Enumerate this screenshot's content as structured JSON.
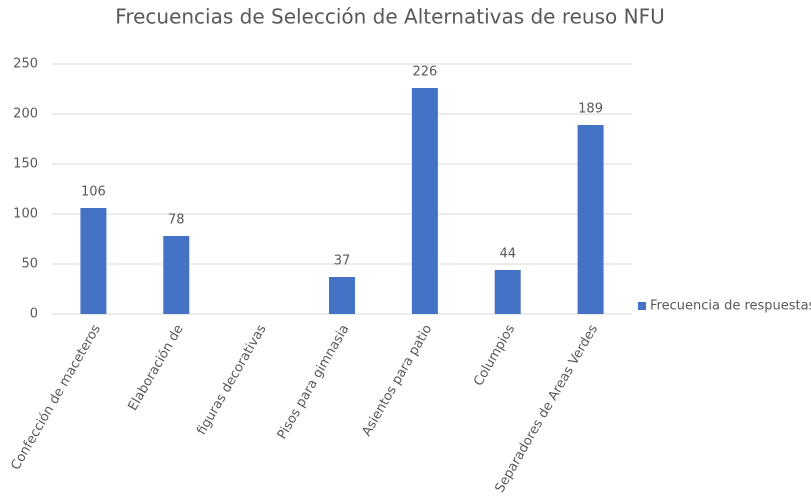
{
  "chart_data": {
    "type": "bar",
    "title": "Frecuencias de Selección de Alternativas de reuso NFU",
    "categories": [
      "Confección de maceteros",
      "Elaboración de",
      "figuras decorativas",
      "Pisos para gimnasia",
      "Asientos para patio",
      "Columpios",
      "Separadores de Areas Verdes"
    ],
    "series": [
      {
        "name": "Frecuencia de respuestas",
        "color": "#4472c4",
        "values": [
          106,
          78,
          null,
          37,
          226,
          44,
          189
        ]
      }
    ],
    "ylim": [
      0,
      250
    ],
    "yticks": [
      0,
      50,
      100,
      150,
      200,
      250
    ],
    "grid": true,
    "legend": "right"
  }
}
